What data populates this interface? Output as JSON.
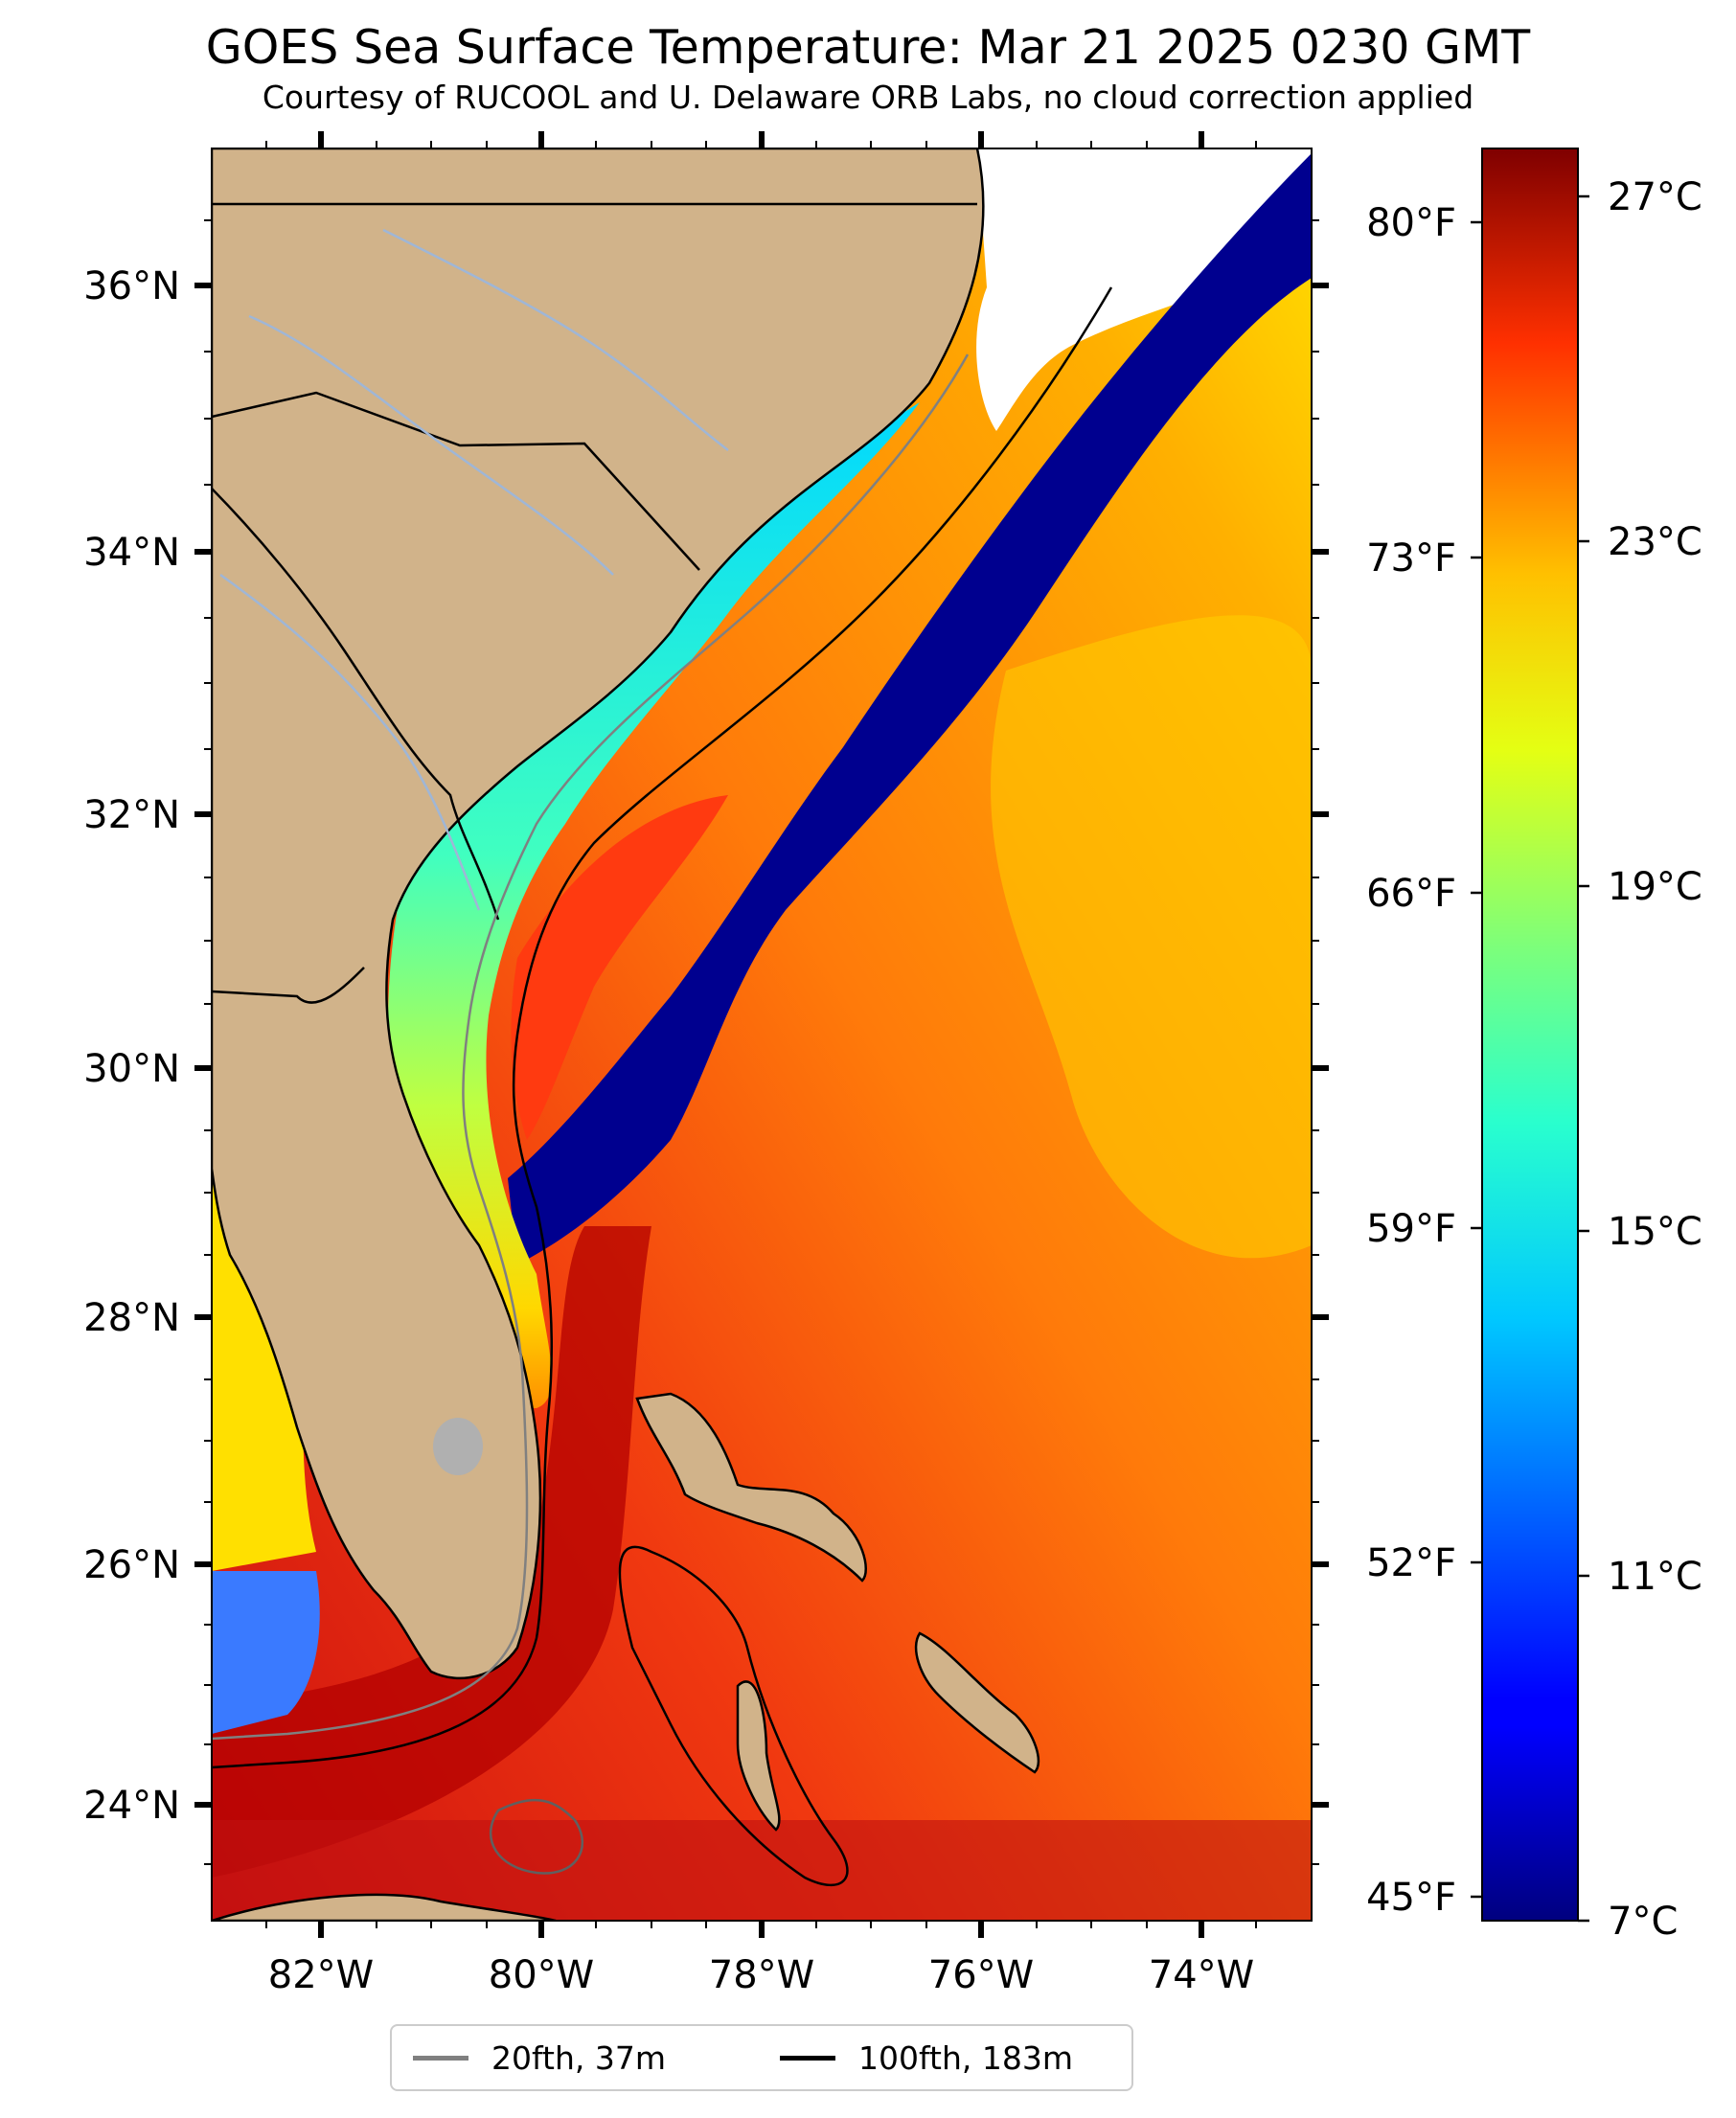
{
  "title": "GOES Sea Surface Temperature: Mar 21 2025 0230 GMT",
  "subtitle": "Courtesy of RUCOOL and U. Delaware ORB Labs, no cloud correction applied",
  "map": {
    "lon_range": [
      -83,
      -73
    ],
    "lat_range": [
      23.1,
      37.1
    ],
    "lon_ticks": [
      "82°W",
      "80°W",
      "78°W",
      "76°W",
      "74°W"
    ],
    "lat_ticks": [
      "36°N",
      "34°N",
      "32°N",
      "30°N",
      "28°N",
      "26°N",
      "24°N"
    ],
    "f_ticks": [
      "80°F",
      "73°F",
      "66°F",
      "59°F",
      "52°F",
      "45°F"
    ],
    "colors": {
      "land": "#d1b38a",
      "lake": "#b0b0b0",
      "river": "#9fb6d6",
      "cold": "#00008f",
      "cloud": "#ffffff"
    }
  },
  "colorbar": {
    "units": "°C",
    "range": [
      6.5,
      28
    ],
    "ticks": [
      "27°C",
      "23°C",
      "19°C",
      "15°C",
      "11°C",
      "7°C"
    ],
    "colormap": "jet"
  },
  "legend": {
    "items": [
      {
        "label": "20fth, 37m",
        "color": "#808080"
      },
      {
        "label": "100fth, 183m",
        "color": "#000000"
      }
    ]
  }
}
